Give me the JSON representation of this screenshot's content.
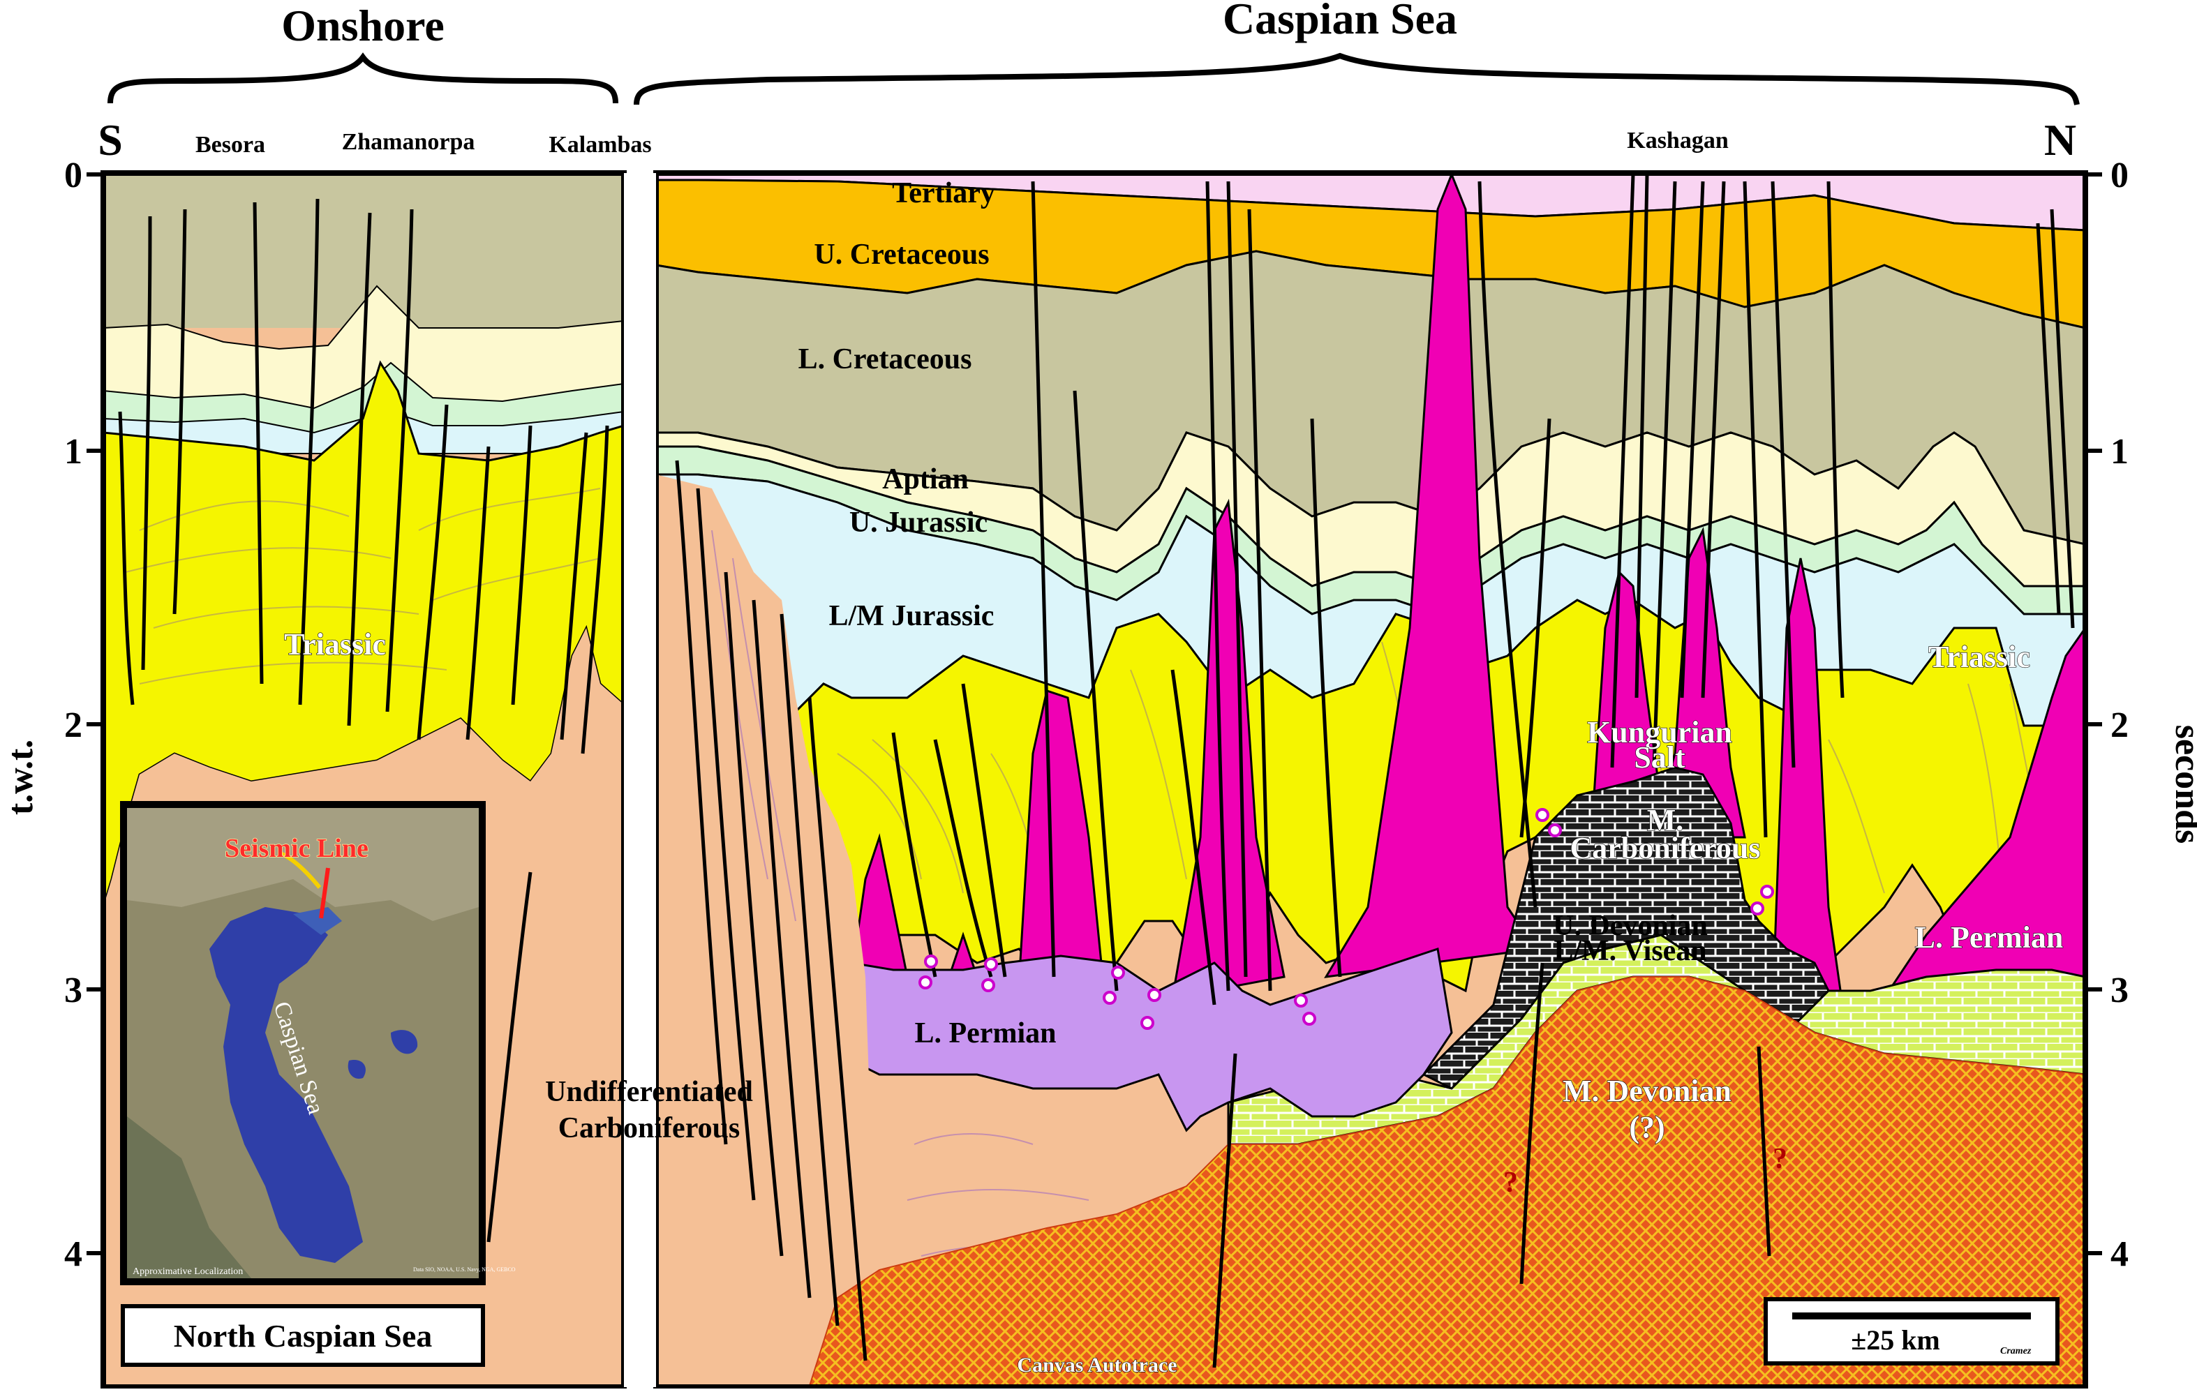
{
  "header": {
    "onshore": "Onshore",
    "offshore": "Caspian Sea",
    "south": "S",
    "north": "N"
  },
  "wells": [
    "Besora",
    "Zhamanorpa",
    "Kalambas",
    "Kashagan"
  ],
  "axes": {
    "left_label": "t.w.t.",
    "right_label": "seconds",
    "ticks": [
      "0",
      "1",
      "2",
      "3",
      "4"
    ]
  },
  "units": {
    "tertiary": "Tertiary",
    "u_cretaceous": "U. Cretaceous",
    "l_cretaceous": "L. Cretaceous",
    "aptian": "Aptian",
    "u_jurassic": "U. Jurassic",
    "lm_jurassic": "L/M  Jurassic",
    "triassic_left": "Triassic",
    "triassic_right": "Triassic",
    "kungurian_1": "Kungurian",
    "kungurian_2": "Salt",
    "m_carb_1": "M.",
    "m_carb_2": "Carboniferous",
    "u_devonian_1": "U. Devonian",
    "u_devonian_2": "L/M. Visean",
    "l_permian_left": "L. Permian",
    "l_permian_right": "L. Permian",
    "undiff_1": "Undifferentiated",
    "undiff_2": "Carboniferous",
    "m_devonian_1": "M. Devonian",
    "m_devonian_2": "(?)",
    "canvas": "Canvas Autotrace",
    "q1": "?",
    "q2": "?"
  },
  "inset": {
    "seismic_line": "Seismic Line",
    "sea_label": "Caspian Sea",
    "localization": "Approximative Localization",
    "credits": "Data SIO, NOAA, U.S. Navy, NGA, GEBCO",
    "title": "North Caspian Sea"
  },
  "scale": {
    "label": "±25 km",
    "author": "Cramez"
  },
  "colors": {
    "tertiary": "#f9d4f2",
    "u_cretaceous": "#fbbf00",
    "l_cretaceous": "#c8c69f",
    "aptian": "#fdf9cf",
    "u_jurassic": "#d3f5d3",
    "lm_jurassic": "#dcf5fa",
    "triassic": "#f5f500",
    "salt": "#f000b4",
    "l_permian": "#c896f0",
    "carboniferous": "#f5c096",
    "m_carboniferous": "#1e1e1e",
    "u_devonian": "#d2f05a",
    "m_devonian": "#e05020",
    "sea": "#2f3fa8"
  }
}
